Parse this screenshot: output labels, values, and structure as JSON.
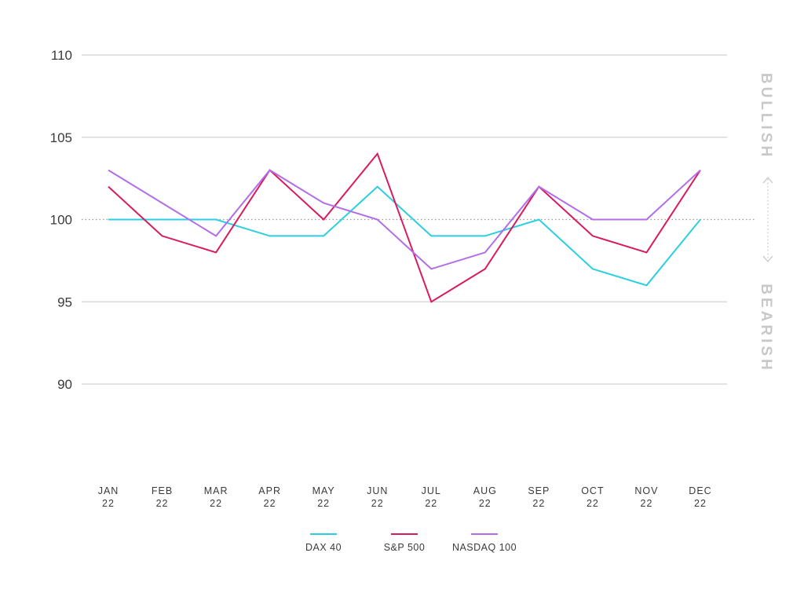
{
  "chart_data": {
    "type": "line",
    "title": "",
    "xlabel": "",
    "ylabel": "",
    "ylim": [
      90,
      110
    ],
    "yticks": [
      90,
      95,
      100,
      105,
      110
    ],
    "reference_line": 100,
    "grid": true,
    "categories": [
      {
        "month": "JAN",
        "year": "22"
      },
      {
        "month": "FEB",
        "year": "22"
      },
      {
        "month": "MAR",
        "year": "22"
      },
      {
        "month": "APR",
        "year": "22"
      },
      {
        "month": "MAY",
        "year": "22"
      },
      {
        "month": "JUN",
        "year": "22"
      },
      {
        "month": "JUL",
        "year": "22"
      },
      {
        "month": "AUG",
        "year": "22"
      },
      {
        "month": "SEP",
        "year": "22"
      },
      {
        "month": "OCT",
        "year": "22"
      },
      {
        "month": "NOV",
        "year": "22"
      },
      {
        "month": "DEC",
        "year": "22"
      }
    ],
    "series": [
      {
        "name": "DAX 40",
        "color": "#2ccfe0",
        "values": [
          100,
          100,
          100,
          99,
          99,
          102,
          99,
          99,
          100,
          97,
          96,
          100
        ]
      },
      {
        "name": "S&P 500",
        "color": "#d81b60",
        "values": [
          102,
          99,
          98,
          103,
          100,
          104,
          95,
          97,
          102,
          99,
          98,
          103
        ]
      },
      {
        "name": "NASDAQ 100",
        "color": "#b16ee6",
        "values": [
          103,
          101,
          99,
          103,
          101,
          100,
          97,
          98,
          102,
          100,
          100,
          103
        ]
      }
    ],
    "annotations": {
      "bullish": "BULLISH",
      "bearish": "BEARISH"
    },
    "legend_position": "bottom-center"
  }
}
